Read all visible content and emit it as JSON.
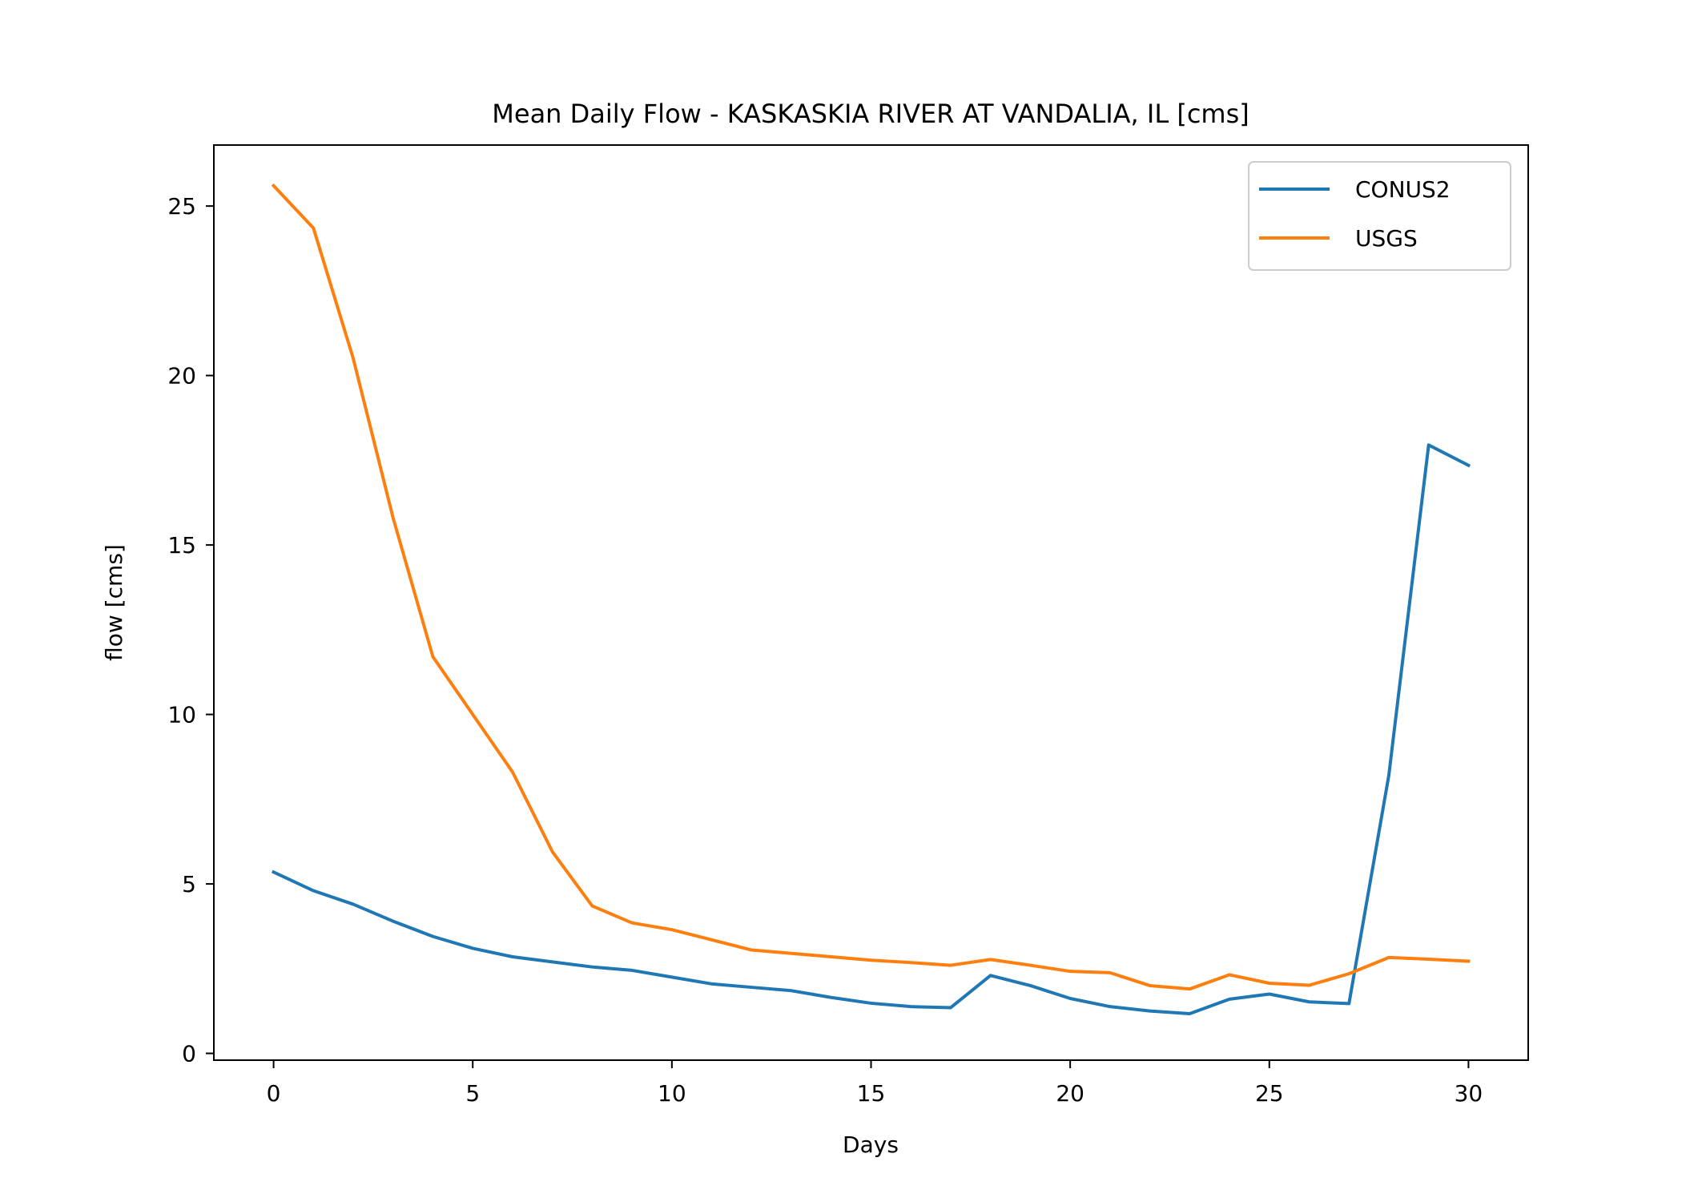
{
  "chart_data": {
    "type": "line",
    "title": "Mean Daily Flow - KASKASKIA RIVER AT VANDALIA, IL [cms]",
    "xlabel": "Days",
    "ylabel": "flow [cms]",
    "xlim": [
      -1.5,
      31.5
    ],
    "ylim": [
      -0.2,
      26.8
    ],
    "xticks": [
      0,
      5,
      10,
      15,
      20,
      25,
      30
    ],
    "yticks": [
      0,
      5,
      10,
      15,
      20,
      25
    ],
    "grid": false,
    "legend_position": "upper right",
    "x": [
      0,
      1,
      2,
      3,
      4,
      5,
      6,
      7,
      8,
      9,
      10,
      11,
      12,
      13,
      14,
      15,
      16,
      17,
      18,
      19,
      20,
      21,
      22,
      23,
      24,
      25,
      26,
      27,
      28,
      29,
      30
    ],
    "series": [
      {
        "name": "CONUS2",
        "color": "#1f77b4",
        "values": [
          5.35,
          4.8,
          4.4,
          3.9,
          3.45,
          3.1,
          2.85,
          2.7,
          2.55,
          2.45,
          2.25,
          2.05,
          1.95,
          1.85,
          1.65,
          1.48,
          1.38,
          1.35,
          2.3,
          2.0,
          1.62,
          1.38,
          1.25,
          1.17,
          1.6,
          1.75,
          1.52,
          1.47,
          8.2,
          17.95,
          17.35
        ]
      },
      {
        "name": "USGS",
        "color": "#ff7f0e",
        "values": [
          25.6,
          24.35,
          20.5,
          15.8,
          11.7,
          10.0,
          8.3,
          5.95,
          4.35,
          3.85,
          3.65,
          3.35,
          3.05,
          2.95,
          2.85,
          2.75,
          2.68,
          2.6,
          2.77,
          2.6,
          2.42,
          2.38,
          2.0,
          1.9,
          2.32,
          2.07,
          2.01,
          2.35,
          2.83,
          2.78,
          2.72
        ]
      }
    ]
  }
}
